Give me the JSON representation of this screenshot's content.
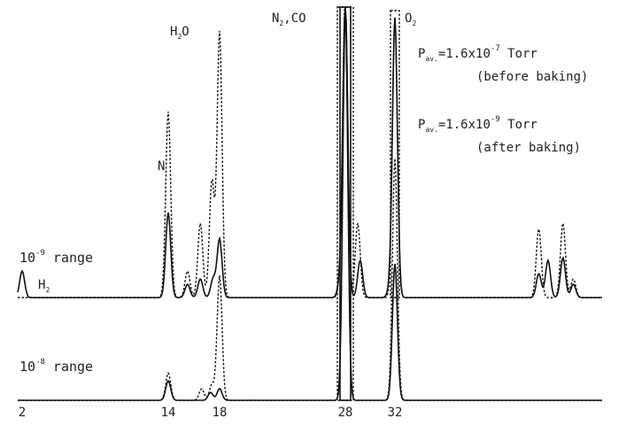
{
  "chart_data": {
    "type": "line",
    "title": "",
    "xlabel": "",
    "ylabel": "",
    "x_ticks": [
      2,
      14,
      18,
      28,
      32
    ],
    "x_tick_labels": [
      "2",
      "14",
      "18",
      "28",
      "32"
    ],
    "xlim": [
      2,
      50
    ],
    "grid": false,
    "annotations": [
      {
        "key": "h2",
        "text": "H",
        "sub": "2",
        "mass": 2
      },
      {
        "key": "n",
        "text": "N",
        "sub": "",
        "mass": 14
      },
      {
        "key": "h2o",
        "text": "H",
        "sub": "2",
        "tail": "O",
        "mass": 18
      },
      {
        "key": "n2co",
        "text": "N",
        "sub": "2",
        "tail": ",CO",
        "mass": 28
      },
      {
        "key": "o2",
        "text": "O",
        "sub": "2",
        "mass": 32
      }
    ],
    "legend_text": [
      {
        "key": "before",
        "lead": "P",
        "lead_sub": "av.",
        "value": "=1.6x10",
        "exp": "-7",
        "unit": " Torr",
        "note": "(before baking)",
        "style": "dotted"
      },
      {
        "key": "after",
        "lead": "P",
        "lead_sub": "av.",
        "value": "=1.6x10",
        "exp": "-9",
        "unit": " Torr",
        "note": "(after baking)",
        "style": "solid"
      }
    ],
    "panels": [
      {
        "range_label": {
          "base": "10",
          "exp": "-9",
          "text": " range"
        },
        "series": [
          {
            "style": "solid",
            "peaks": [
              [
                2,
                0.1
              ],
              [
                14,
                0.32
              ],
              [
                15.5,
                0.05
              ],
              [
                16.5,
                0.07
              ],
              [
                17.5,
                0.07
              ],
              [
                18,
                0.22
              ],
              [
                27.6,
                0.06
              ],
              [
                28,
                1.1
              ],
              [
                29.2,
                0.14
              ],
              [
                31.6,
                0.03
              ],
              [
                32,
                1.05
              ],
              [
                44.5,
                0.09
              ],
              [
                45.3,
                0.14
              ],
              [
                46.6,
                0.15
              ],
              [
                47.5,
                0.05
              ]
            ]
          },
          {
            "style": "dotted",
            "peaks": [
              [
                14,
                0.7
              ],
              [
                15.5,
                0.1
              ],
              [
                16.5,
                0.28
              ],
              [
                17.4,
                0.44
              ],
              [
                18,
                1.0
              ],
              [
                27.7,
                0.1
              ],
              [
                28,
                1.1
              ],
              [
                29,
                0.28
              ],
              [
                32,
                1.05
              ],
              [
                44.5,
                0.26
              ],
              [
                46.6,
                0.28
              ],
              [
                47.5,
                0.07
              ]
            ]
          }
        ]
      },
      {
        "range_label": {
          "base": "10",
          "exp": "-8",
          "text": " range"
        },
        "series": [
          {
            "style": "solid",
            "peaks": [
              [
                14,
                0.05
              ],
              [
                17.3,
                0.02
              ],
              [
                18,
                0.03
              ],
              [
                28,
                1.0
              ],
              [
                32,
                0.35
              ]
            ]
          },
          {
            "style": "dotted",
            "peaks": [
              [
                14,
                0.07
              ],
              [
                16.6,
                0.03
              ],
              [
                17.4,
                0.04
              ],
              [
                18,
                0.32
              ],
              [
                28,
                1.0
              ],
              [
                32,
                0.62
              ]
            ]
          }
        ]
      }
    ]
  }
}
